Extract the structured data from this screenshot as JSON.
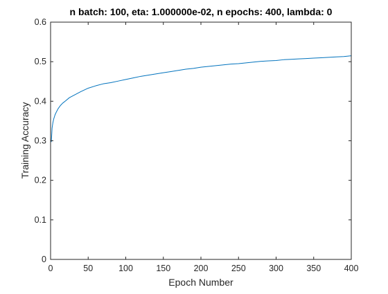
{
  "chart_data": {
    "type": "line",
    "title": "n batch: 100, eta: 1.000000e-02, n epochs: 400, lambda: 0",
    "xlabel": "Epoch Number",
    "ylabel": "Training Accuracy",
    "xlim": [
      0,
      400
    ],
    "ylim": [
      0,
      0.6
    ],
    "xticks": [
      0,
      50,
      100,
      150,
      200,
      250,
      300,
      350,
      400
    ],
    "yticks": [
      0,
      0.1,
      0.2,
      0.3,
      0.4,
      0.5,
      0.6
    ],
    "xtick_labels": [
      "0",
      "50",
      "100",
      "150",
      "200",
      "250",
      "300",
      "350",
      "400"
    ],
    "ytick_labels": [
      "0",
      "0.1",
      "0.2",
      "0.3",
      "0.4",
      "0.5",
      "0.6"
    ],
    "grid": false,
    "legend": "none",
    "series": [
      {
        "color": "#0072BD",
        "x": [
          1,
          2,
          3,
          4,
          6,
          8,
          10,
          13,
          16,
          20,
          25,
          30,
          40,
          50,
          60,
          70,
          80,
          90,
          100,
          110,
          120,
          130,
          140,
          150,
          160,
          170,
          180,
          190,
          200,
          210,
          220,
          230,
          240,
          250,
          260,
          270,
          280,
          290,
          300,
          310,
          320,
          330,
          340,
          350,
          360,
          370,
          380,
          390,
          400
        ],
        "y": [
          0.297,
          0.332,
          0.345,
          0.354,
          0.366,
          0.374,
          0.381,
          0.389,
          0.395,
          0.401,
          0.409,
          0.414,
          0.424,
          0.433,
          0.439,
          0.444,
          0.447,
          0.451,
          0.455,
          0.459,
          0.463,
          0.466,
          0.469,
          0.472,
          0.475,
          0.478,
          0.481,
          0.483,
          0.486,
          0.488,
          0.49,
          0.492,
          0.494,
          0.495,
          0.497,
          0.499,
          0.501,
          0.502,
          0.503,
          0.505,
          0.506,
          0.507,
          0.508,
          0.509,
          0.51,
          0.511,
          0.512,
          0.513,
          0.515
        ]
      }
    ]
  }
}
